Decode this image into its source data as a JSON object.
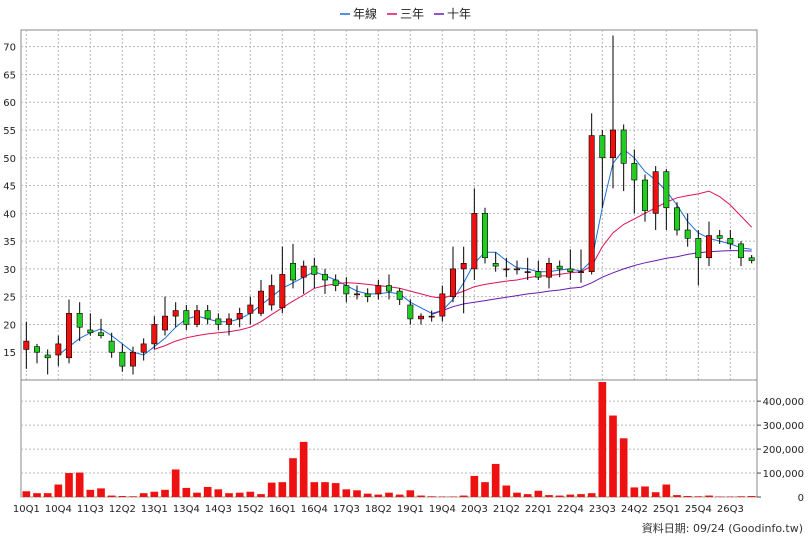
{
  "chart_data": [
    {
      "type": "candlestick",
      "legend": {
        "placement": "top-center",
        "items": [
          {
            "label": "年線",
            "color": "#1a6fd6"
          },
          {
            "label": "三年",
            "color": "#e0105a"
          },
          {
            "label": "十年",
            "color": "#6a1ab0"
          }
        ]
      },
      "ylim": [
        10,
        73
      ],
      "yticks": [
        "15",
        "20",
        "25",
        "30",
        "35",
        "40",
        "45",
        "50",
        "55",
        "60",
        "65",
        "70"
      ],
      "xticks": [
        "10Q1",
        "10Q4",
        "11Q3",
        "12Q2",
        "13Q1",
        "13Q4",
        "14Q3",
        "15Q2",
        "16Q1",
        "16Q4",
        "17Q3",
        "18Q2",
        "19Q1",
        "19Q4",
        "20Q3",
        "21Q2",
        "22Q1",
        "22Q4",
        "23Q3",
        "24Q2",
        "25Q1",
        "25Q4",
        "26Q3"
      ],
      "grid": true,
      "up_color": "#ee1111",
      "down_color": "#22cc22",
      "candles": [
        [
          15.5,
          20.5,
          12.0,
          17.0
        ],
        [
          16.0,
          16.5,
          13.0,
          15.0
        ],
        [
          14.5,
          15.5,
          11.0,
          14.0
        ],
        [
          14.5,
          18.0,
          12.5,
          16.5
        ],
        [
          14.0,
          24.5,
          13.0,
          22.0
        ],
        [
          22.0,
          24.0,
          17.0,
          19.5
        ],
        [
          19.0,
          22.0,
          18.0,
          18.5
        ],
        [
          18.5,
          21.0,
          17.5,
          18.0
        ],
        [
          17.0,
          18.5,
          14.0,
          15.0
        ],
        [
          15.0,
          16.5,
          11.5,
          12.5
        ],
        [
          12.5,
          16.0,
          11.0,
          15.0
        ],
        [
          15.0,
          17.5,
          13.5,
          16.5
        ],
        [
          16.5,
          21.5,
          15.5,
          20.0
        ],
        [
          19.0,
          25.0,
          18.0,
          21.5
        ],
        [
          21.5,
          24.0,
          19.5,
          22.5
        ],
        [
          22.5,
          23.5,
          19.0,
          20.0
        ],
        [
          20.0,
          23.5,
          19.5,
          22.5
        ],
        [
          22.5,
          23.5,
          20.0,
          21.0
        ],
        [
          21.0,
          22.0,
          19.0,
          20.0
        ],
        [
          20.0,
          22.0,
          18.0,
          21.0
        ],
        [
          21.0,
          23.0,
          19.5,
          22.0
        ],
        [
          22.0,
          25.0,
          20.0,
          23.5
        ],
        [
          22.0,
          28.0,
          21.5,
          26.0
        ],
        [
          23.5,
          29.0,
          22.5,
          27.0
        ],
        [
          23.0,
          34.0,
          22.0,
          29.0
        ],
        [
          31.0,
          34.5,
          26.5,
          28.0
        ],
        [
          28.5,
          31.5,
          25.5,
          30.5
        ],
        [
          30.5,
          32.0,
          26.5,
          29.0
        ],
        [
          29.0,
          30.0,
          25.5,
          28.0
        ],
        [
          28.0,
          29.0,
          26.0,
          27.0
        ],
        [
          27.0,
          28.5,
          24.0,
          25.5
        ],
        [
          25.5,
          27.0,
          24.5,
          25.5
        ],
        [
          25.5,
          26.5,
          24.0,
          25.0
        ],
        [
          25.5,
          28.0,
          24.5,
          27.0
        ],
        [
          27.0,
          29.0,
          24.5,
          26.0
        ],
        [
          26.0,
          26.5,
          23.5,
          24.5
        ],
        [
          23.5,
          24.5,
          20.0,
          21.0
        ],
        [
          21.0,
          22.0,
          20.0,
          21.5
        ],
        [
          21.5,
          22.5,
          20.5,
          21.5
        ],
        [
          21.5,
          27.0,
          20.5,
          25.5
        ],
        [
          25.0,
          34.0,
          24.0,
          30.0
        ],
        [
          30.0,
          34.0,
          22.0,
          31.0
        ],
        [
          30.0,
          44.5,
          28.0,
          40.0
        ],
        [
          40.0,
          41.0,
          31.0,
          32.0
        ],
        [
          31.0,
          33.0,
          29.5,
          30.5
        ],
        [
          30.0,
          32.0,
          28.5,
          30.0
        ],
        [
          30.0,
          31.5,
          29.0,
          30.0
        ],
        [
          29.5,
          32.0,
          28.0,
          29.5
        ],
        [
          29.5,
          31.5,
          28.0,
          28.5
        ],
        [
          28.5,
          32.0,
          26.5,
          31.0
        ],
        [
          30.5,
          31.5,
          28.5,
          30.0
        ],
        [
          30.0,
          33.5,
          28.0,
          29.5
        ],
        [
          29.5,
          33.5,
          27.5,
          29.5
        ],
        [
          29.5,
          58.0,
          29.0,
          54.0
        ],
        [
          54.0,
          55.0,
          41.0,
          50.0
        ],
        [
          50.0,
          72.0,
          44.5,
          55.0
        ],
        [
          55.0,
          56.0,
          44.0,
          49.0
        ],
        [
          49.0,
          51.5,
          40.0,
          46.0
        ],
        [
          46.0,
          47.0,
          38.5,
          40.5
        ],
        [
          40.0,
          48.5,
          37.0,
          47.5
        ],
        [
          47.5,
          48.0,
          37.0,
          41.0
        ],
        [
          41.0,
          42.0,
          36.0,
          37.0
        ],
        [
          37.0,
          40.0,
          34.0,
          35.5
        ],
        [
          35.5,
          37.0,
          27.0,
          32.0
        ],
        [
          32.0,
          38.5,
          30.5,
          36.0
        ],
        [
          36.0,
          37.0,
          34.5,
          35.5
        ],
        [
          35.5,
          37.0,
          33.5,
          34.5
        ],
        [
          34.5,
          35.0,
          30.5,
          32.0
        ],
        [
          32.0,
          32.5,
          31.0,
          31.5
        ]
      ],
      "series": [
        {
          "name": "年線",
          "color": "#1a6fd6",
          "values": [
            null,
            null,
            null,
            14.5,
            16.0,
            17.5,
            18.5,
            19.2,
            18.0,
            16.5,
            15.0,
            14.5,
            16.0,
            17.5,
            19.5,
            21.0,
            21.5,
            21.0,
            20.5,
            20.5,
            21.0,
            22.0,
            23.5,
            25.0,
            26.5,
            27.5,
            28.5,
            29.5,
            28.8,
            28.0,
            27.0,
            26.0,
            25.5,
            25.5,
            25.8,
            25.5,
            24.0,
            23.0,
            22.0,
            22.5,
            24.5,
            27.5,
            31.0,
            33.0,
            33.0,
            31.5,
            30.2,
            30.0,
            29.5,
            29.5,
            29.8,
            30.0,
            29.6,
            31.5,
            41.0,
            49.0,
            51.5,
            50.0,
            47.5,
            46.0,
            44.0,
            41.5,
            38.5,
            36.5,
            35.5,
            35.0,
            34.5,
            33.8,
            33.5
          ]
        },
        {
          "name": "三年",
          "color": "#e0105a",
          "values": [
            null,
            null,
            null,
            null,
            null,
            null,
            null,
            null,
            null,
            null,
            null,
            null,
            15.5,
            16.2,
            17.0,
            17.6,
            18.0,
            18.3,
            18.5,
            18.7,
            19.0,
            19.5,
            20.5,
            21.8,
            23.0,
            24.2,
            25.3,
            26.5,
            27.0,
            27.3,
            27.5,
            27.4,
            27.2,
            27.0,
            26.8,
            26.5,
            26.0,
            25.5,
            25.0,
            24.7,
            25.3,
            26.0,
            26.8,
            27.2,
            27.5,
            27.8,
            28.0,
            28.4,
            28.7,
            28.8,
            29.0,
            29.3,
            29.5,
            30.5,
            34.0,
            36.5,
            38.0,
            39.0,
            40.0,
            41.0,
            42.0,
            42.8,
            43.2,
            43.5,
            44.0,
            43.0,
            41.5,
            39.5,
            37.5
          ]
        },
        {
          "name": "十年",
          "color": "#6a1ab0",
          "values": [
            null,
            null,
            null,
            null,
            null,
            null,
            null,
            null,
            null,
            null,
            null,
            null,
            null,
            null,
            null,
            null,
            null,
            null,
            null,
            null,
            null,
            null,
            null,
            null,
            null,
            null,
            null,
            null,
            null,
            null,
            null,
            null,
            null,
            null,
            null,
            null,
            null,
            null,
            21.8,
            22.5,
            23.2,
            23.7,
            24.0,
            24.3,
            24.6,
            24.9,
            25.2,
            25.5,
            25.7,
            26.0,
            26.2,
            26.5,
            26.7,
            27.5,
            28.5,
            29.3,
            30.0,
            30.6,
            31.1,
            31.5,
            31.9,
            32.2,
            32.6,
            32.9,
            33.1,
            33.2,
            33.3,
            33.3,
            33.2
          ]
        }
      ]
    },
    {
      "type": "bar",
      "name": "volume",
      "color": "#ee1111",
      "ylim": [
        0,
        480000
      ],
      "yticks": [
        "0",
        "100,000",
        "200,000",
        "300,000",
        "400,000"
      ],
      "values": [
        24000,
        16000,
        16000,
        52000,
        100000,
        102000,
        30000,
        36000,
        6000,
        4000,
        3000,
        16000,
        22000,
        30000,
        115000,
        38000,
        18000,
        42000,
        32000,
        16000,
        18000,
        22000,
        12000,
        60000,
        62000,
        162000,
        230000,
        62000,
        62000,
        58000,
        32000,
        28000,
        14000,
        10000,
        18000,
        10000,
        28000,
        6000,
        3000,
        2000,
        2000,
        6000,
        88000,
        62000,
        138000,
        48000,
        18000,
        12000,
        26000,
        8000,
        6000,
        10000,
        12000,
        16000,
        480000,
        340000,
        245000,
        40000,
        44000,
        20000,
        52000,
        8000,
        4000,
        3000,
        6000,
        2000,
        2000,
        3000,
        4000
      ]
    }
  ],
  "footer": {
    "source": "資料日期: 09/24  (Goodinfo.tw)"
  }
}
